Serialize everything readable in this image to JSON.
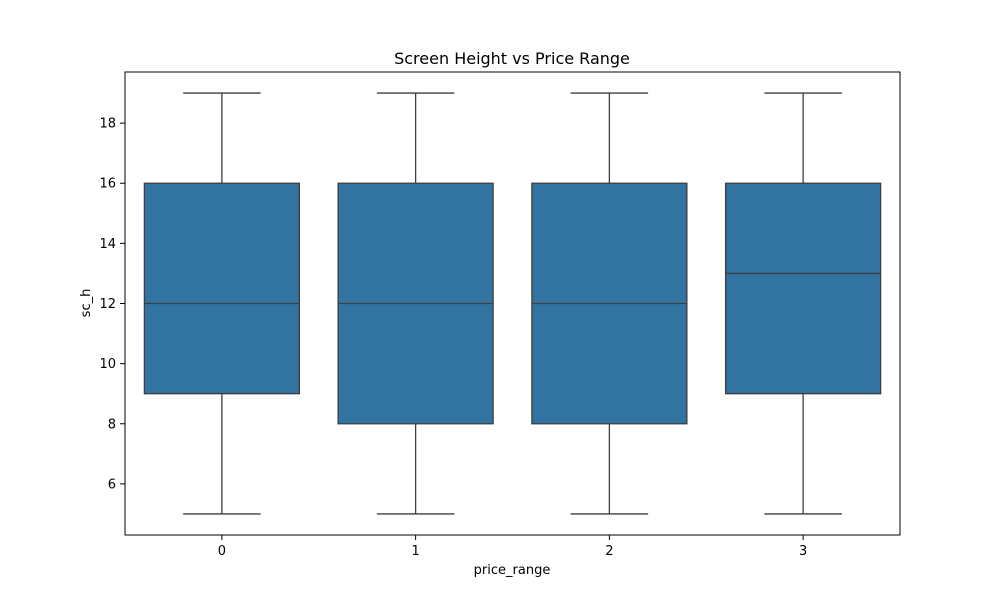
{
  "chart_data": {
    "type": "box",
    "title": "Screen Height vs Price Range",
    "xlabel": "price_range",
    "ylabel": "sc_h",
    "categories": [
      "0",
      "1",
      "2",
      "3"
    ],
    "ylim": [
      4.3,
      19.7
    ],
    "yticks": [
      6,
      8,
      10,
      12,
      14,
      16,
      18
    ],
    "box_color": "#3274a1",
    "line_color": "#3f3f3f",
    "boxes": [
      {
        "category": "0",
        "whisker_low": 5,
        "q1": 9,
        "median": 12,
        "q3": 16,
        "whisker_high": 19
      },
      {
        "category": "1",
        "whisker_low": 5,
        "q1": 8,
        "median": 12,
        "q3": 16,
        "whisker_high": 19
      },
      {
        "category": "2",
        "whisker_low": 5,
        "q1": 8,
        "median": 12,
        "q3": 16,
        "whisker_high": 19
      },
      {
        "category": "3",
        "whisker_low": 5,
        "q1": 9,
        "median": 13,
        "q3": 16,
        "whisker_high": 19
      }
    ],
    "grid": false,
    "legend": "none"
  }
}
